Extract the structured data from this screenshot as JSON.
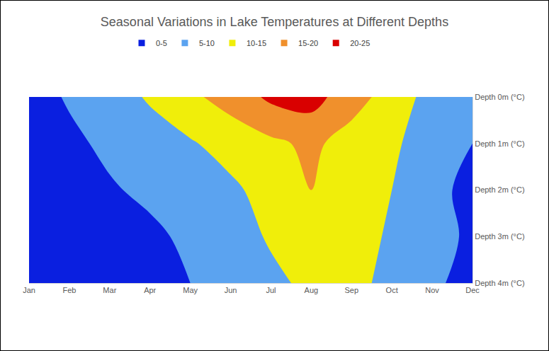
{
  "chart_data": {
    "type": "contour",
    "title": "Seasonal Variations in Lake Temperatures at Different Depths",
    "x": [
      "Jan",
      "Feb",
      "Mar",
      "Apr",
      "May",
      "Jun",
      "Jul",
      "Aug",
      "Sep",
      "Oct",
      "Nov",
      "Dec"
    ],
    "y": [
      "Depth 0m (°C)",
      "Depth 1m (°C)",
      "Depth 2m (°C)",
      "Depth 3m (°C)",
      "Depth 4m (°C)"
    ],
    "z": [
      [
        3,
        5.5,
        8,
        10.5,
        14,
        17,
        21,
        22,
        17,
        13,
        8,
        7
      ],
      [
        3,
        4,
        6,
        8,
        9.5,
        12,
        14,
        16,
        13,
        11,
        7,
        5
      ],
      [
        2,
        3,
        4.5,
        6,
        8,
        9,
        12,
        15,
        13,
        10,
        7,
        3
      ],
      [
        2,
        2.5,
        3,
        4,
        6,
        8,
        10.5,
        12,
        13,
        9,
        7,
        4
      ],
      [
        1.5,
        2,
        2.5,
        3.5,
        5,
        7,
        9,
        11,
        12,
        8,
        6,
        3
      ]
    ],
    "zlim": [
      0,
      25
    ],
    "zticks": [
      0,
      5,
      10,
      15,
      20,
      25
    ],
    "series": [
      {
        "name": "0-5",
        "color": "#0a1fe0"
      },
      {
        "name": "5-10",
        "color": "#5ba3f0"
      },
      {
        "name": "10-15",
        "color": "#f0ee0a"
      },
      {
        "name": "15-20",
        "color": "#f0902c"
      },
      {
        "name": "20-25",
        "color": "#d90000"
      }
    ],
    "legend": "top"
  }
}
